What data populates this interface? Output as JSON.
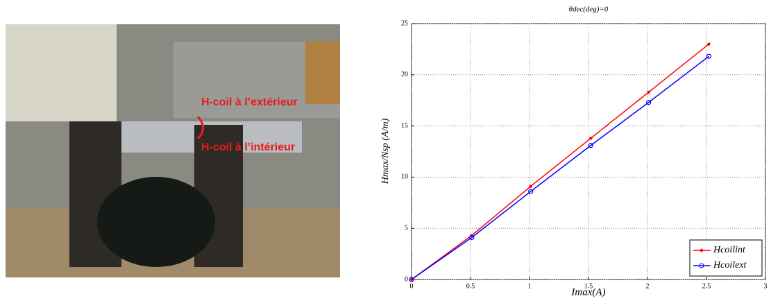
{
  "photo": {
    "labels": [
      "H-coil à l’extérieur",
      "H-coil à l’intérieur"
    ]
  },
  "chart_data": {
    "type": "line",
    "title": "θdec(deg)=0",
    "x_label": "Imax(A)",
    "y_label": "Hmax/Nsp (A/m)",
    "x": [
      0,
      0.51,
      1.01,
      1.52,
      2.01,
      2.52
    ],
    "series": [
      {
        "name": "Hcoilint",
        "color": "#ff0000",
        "marker": "dot",
        "values": [
          0,
          4.3,
          9.1,
          13.8,
          18.3,
          23.0
        ]
      },
      {
        "name": "Hcoilext",
        "color": "#0000ff",
        "marker": "circle",
        "values": [
          0,
          4.1,
          8.6,
          13.1,
          17.3,
          21.8
        ]
      }
    ],
    "xlim": [
      0,
      3
    ],
    "xticks": [
      0,
      0.5,
      1,
      1.5,
      2,
      2.5,
      3
    ],
    "ylim": [
      0,
      25
    ],
    "yticks": [
      0,
      5,
      10,
      15,
      20,
      25
    ],
    "grid": true,
    "legend": "lower-right"
  }
}
